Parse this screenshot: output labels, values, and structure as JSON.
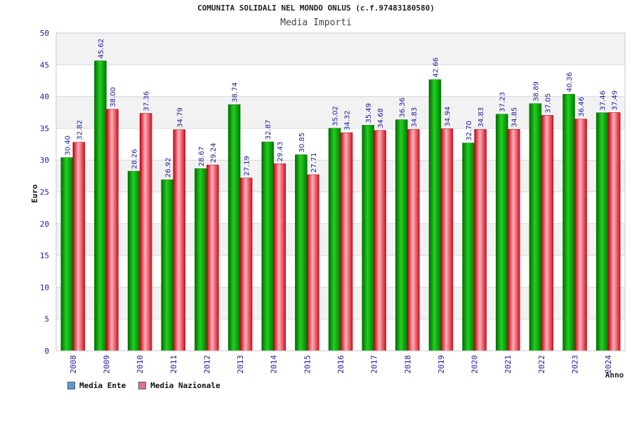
{
  "chart_data": {
    "type": "bar",
    "title": "COMUNITA SOLIDALI NEL MONDO ONLUS (c.f.97483180580)",
    "subtitle": "Media Importi",
    "ylabel": "Euro",
    "xlabel": "Anno",
    "ylim": [
      0,
      50
    ],
    "yticks": [
      0,
      5,
      10,
      15,
      20,
      25,
      30,
      35,
      40,
      45,
      50
    ],
    "categories": [
      "2008",
      "2009",
      "2010",
      "2011",
      "2012",
      "2013",
      "2014",
      "2015",
      "2016",
      "2017",
      "2018",
      "2019",
      "2020",
      "2021",
      "2022",
      "2023",
      "2024"
    ],
    "series": [
      {
        "name": "Media Ente",
        "color": "#00a000",
        "legend_color": "#5b9bd5",
        "values": [
          30.4,
          45.62,
          28.26,
          26.92,
          28.67,
          38.74,
          32.87,
          30.85,
          35.02,
          35.49,
          36.36,
          42.66,
          32.7,
          37.23,
          38.89,
          40.36,
          37.46
        ],
        "labels": [
          "30.40",
          "45.62",
          "28.26",
          "26.92",
          "28.67",
          "38.74",
          "32.87",
          "30.85",
          "35.02",
          "35.49",
          "36.36",
          "42.66",
          "32.70",
          "37.23",
          "38.89",
          "40.36",
          "37.46"
        ]
      },
      {
        "name": "Media Nazionale",
        "color": "#e8202a",
        "legend_color": "#e06fa0",
        "values": [
          32.82,
          38.0,
          37.36,
          34.79,
          29.24,
          27.19,
          29.43,
          27.71,
          34.32,
          34.68,
          34.83,
          34.94,
          34.83,
          34.85,
          37.05,
          36.46,
          37.49
        ],
        "labels": [
          "32.82",
          "38.00",
          "37.36",
          "34.79",
          "29.24",
          "27.19",
          "29.43",
          "27.71",
          "34.32",
          "34.68",
          "34.83",
          "34.94",
          "34.83",
          "34.85",
          "37.05",
          "36.46",
          "37.49"
        ]
      }
    ],
    "grid": true,
    "legend_position": "bottom-left"
  }
}
